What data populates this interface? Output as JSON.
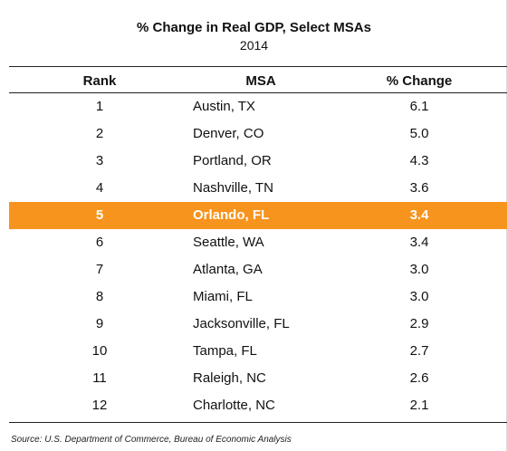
{
  "chart_data": {
    "type": "table",
    "title": "% Change in Real GDP, Select MSAs",
    "subtitle": "2014",
    "columns": [
      "Rank",
      "MSA",
      "% Change"
    ],
    "highlight_color": "#f7941d",
    "rows": [
      {
        "rank": "1",
        "msa": "Austin, TX",
        "pct": "6.1",
        "highlight": false
      },
      {
        "rank": "2",
        "msa": "Denver, CO",
        "pct": "5.0",
        "highlight": false
      },
      {
        "rank": "3",
        "msa": "Portland, OR",
        "pct": "4.3",
        "highlight": false
      },
      {
        "rank": "4",
        "msa": "Nashville, TN",
        "pct": "3.6",
        "highlight": false
      },
      {
        "rank": "5",
        "msa": "Orlando, FL",
        "pct": "3.4",
        "highlight": true
      },
      {
        "rank": "6",
        "msa": "Seattle, WA",
        "pct": "3.4",
        "highlight": false
      },
      {
        "rank": "7",
        "msa": "Atlanta, GA",
        "pct": "3.0",
        "highlight": false
      },
      {
        "rank": "8",
        "msa": "Miami, FL",
        "pct": "3.0",
        "highlight": false
      },
      {
        "rank": "9",
        "msa": "Jacksonville, FL",
        "pct": "2.9",
        "highlight": false
      },
      {
        "rank": "10",
        "msa": "Tampa, FL",
        "pct": "2.7",
        "highlight": false
      },
      {
        "rank": "11",
        "msa": "Raleigh, NC",
        "pct": "2.6",
        "highlight": false
      },
      {
        "rank": "12",
        "msa": "Charlotte, NC",
        "pct": "2.1",
        "highlight": false
      }
    ],
    "source": "Source: U.S. Department of Commerce, Bureau of Economic Analysis"
  }
}
